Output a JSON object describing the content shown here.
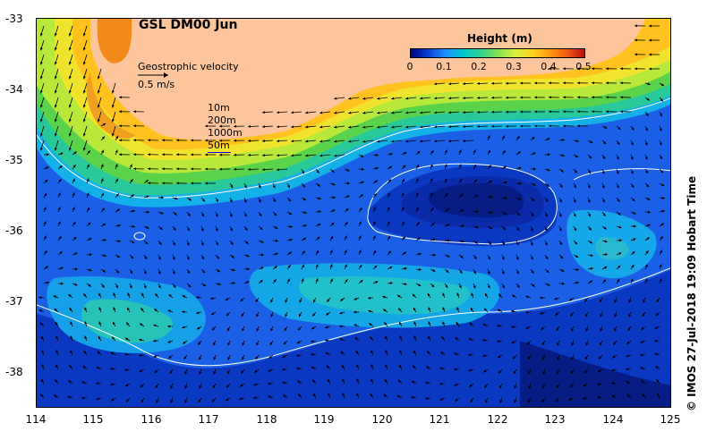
{
  "title": "GSL DM00 Jun",
  "velocity_label": "Geostrophic velocity",
  "velocity_scale": "0.5 m/s",
  "isobaths": [
    "10m",
    "200m",
    "1000m",
    "50m"
  ],
  "colorbar": {
    "title": "Height (m)",
    "ticks": [
      "0",
      "0.1",
      "0.2",
      "0.3",
      "0.4",
      "0.5"
    ],
    "colors": [
      "#00007f",
      "#0a3fd4",
      "#1e90ff",
      "#00c8d0",
      "#30d090",
      "#7fe050",
      "#d8f040",
      "#ffd21e",
      "#ff9a12",
      "#f05a12",
      "#b40f0f"
    ]
  },
  "y_ticks": [
    "-33",
    "-34",
    "-35",
    "-36",
    "-37",
    "-38"
  ],
  "x_ticks": [
    "114",
    "115",
    "116",
    "117",
    "118",
    "119",
    "120",
    "121",
    "122",
    "123",
    "124",
    "125"
  ],
  "credit": "© IMOS 27-Jul-2018 19:09 Hobart Time",
  "colors": {
    "land": "#fcc59b",
    "deep": "#0a2aa8",
    "mid": "#1e60e8",
    "shelf": "#ffd21e"
  }
}
